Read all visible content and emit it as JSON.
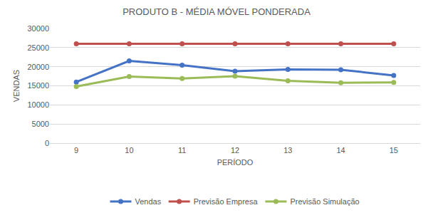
{
  "chart_data": {
    "type": "line",
    "title": "PRODUTO B - MÉDIA MÓVEL PONDERADA",
    "x_label": "PERÍODO",
    "y_label": "VENDAS",
    "categories": [
      "9",
      "10",
      "11",
      "12",
      "13",
      "14",
      "15"
    ],
    "series": [
      {
        "name": "Vendas",
        "color": "#4472c4",
        "values": [
          16000,
          21500,
          20400,
          18800,
          19300,
          19200,
          17700
        ]
      },
      {
        "name": "Previsão Empresa",
        "color": "#c0504d",
        "values": [
          26000,
          26000,
          26000,
          26000,
          26000,
          26000,
          26000
        ]
      },
      {
        "name": "Previsão Simulação",
        "color": "#9bbb59",
        "values": [
          14800,
          17400,
          16900,
          17500,
          16300,
          15800,
          15900
        ]
      }
    ],
    "ylim": [
      0,
      30000
    ],
    "yticks": [
      0,
      5000,
      10000,
      15000,
      20000,
      25000,
      30000
    ],
    "grid": true,
    "legend": "bottom",
    "marker": "circle"
  }
}
